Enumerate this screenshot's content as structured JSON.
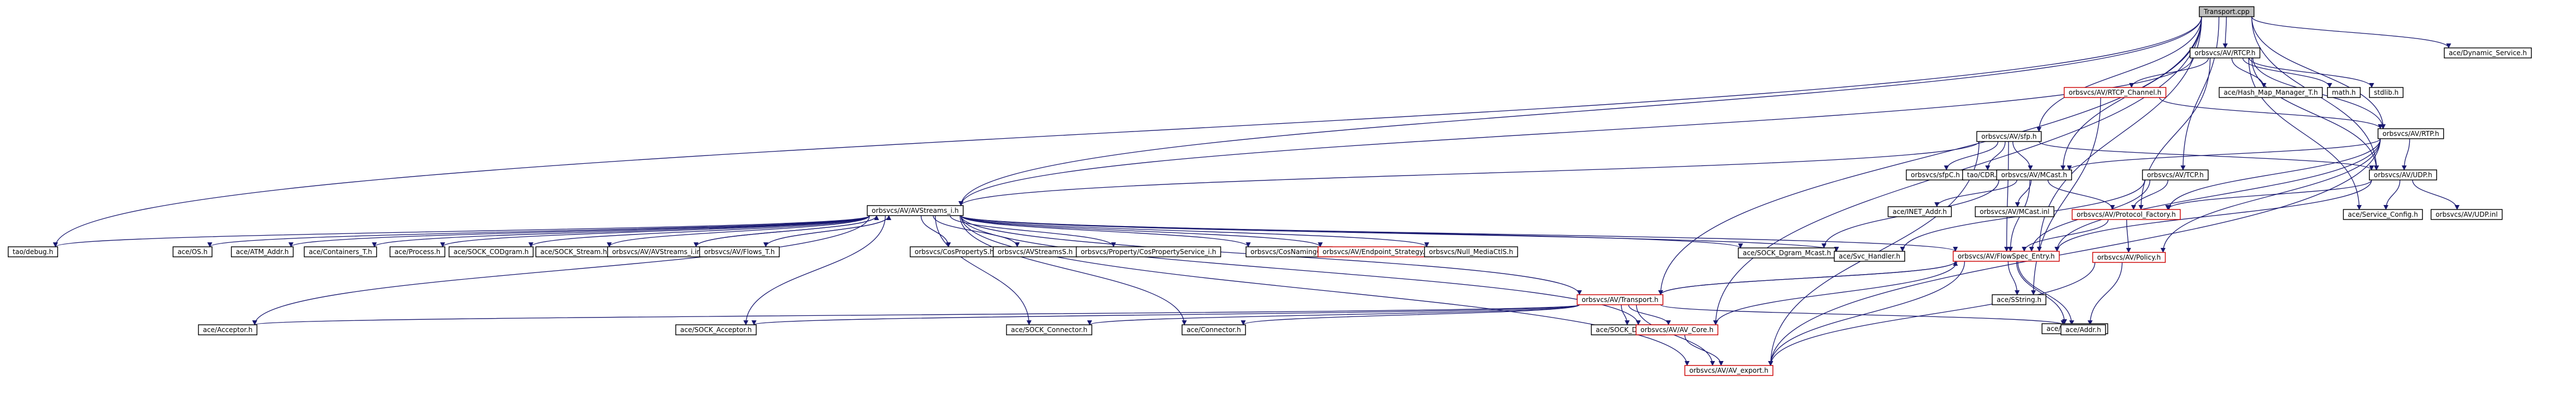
{
  "graph": {
    "edge_color": "#191970",
    "missing_border_color": "#cc0000",
    "root_fill_color": "#bfbfbf",
    "nodes": [
      {
        "id": "transport_cpp",
        "label": "Transport.cpp",
        "kind": "root"
      },
      {
        "id": "rtcp_h",
        "label": "orbsvcs/AV/RTCP.h",
        "kind": "normal"
      },
      {
        "id": "dynamic_service_h",
        "label": "ace/Dynamic_Service.h",
        "kind": "normal"
      },
      {
        "id": "rtcp_channel_h",
        "label": "orbsvcs/AV/RTCP_Channel.h",
        "kind": "missing"
      },
      {
        "id": "hash_map_manager_t_h",
        "label": "ace/Hash_Map_Manager_T.h",
        "kind": "normal"
      },
      {
        "id": "math_h",
        "label": "math.h",
        "kind": "normal"
      },
      {
        "id": "stdlib_h",
        "label": "stdlib.h",
        "kind": "normal"
      },
      {
        "id": "rtp_h",
        "label": "orbsvcs/AV/RTP.h",
        "kind": "normal"
      },
      {
        "id": "sfp_h",
        "label": "orbsvcs/AV/sfp.h",
        "kind": "normal"
      },
      {
        "id": "sfpc_h",
        "label": "orbsvcs/sfpC.h",
        "kind": "normal"
      },
      {
        "id": "tao_cdr_h",
        "label": "tao/CDR.h",
        "kind": "normal"
      },
      {
        "id": "mcast_h",
        "label": "orbsvcs/AV/MCast.h",
        "kind": "normal"
      },
      {
        "id": "tcp_h",
        "label": "orbsvcs/AV/TCP.h",
        "kind": "normal"
      },
      {
        "id": "udp_h",
        "label": "orbsvcs/AV/UDP.h",
        "kind": "normal"
      },
      {
        "id": "avstreams_i_h",
        "label": "orbsvcs/AV/AVStreams_i.h",
        "kind": "normal"
      },
      {
        "id": "ace_os_h",
        "label": "ace/OS.h",
        "kind": "normal"
      },
      {
        "id": "atm_addr_h",
        "label": "ace/ATM_Addr.h",
        "kind": "normal"
      },
      {
        "id": "containers_t_h",
        "label": "ace/Containers_T.h",
        "kind": "normal"
      },
      {
        "id": "process_h",
        "label": "ace/Process.h",
        "kind": "normal"
      },
      {
        "id": "sock_codgram_h",
        "label": "ace/SOCK_CODgram.h",
        "kind": "normal"
      },
      {
        "id": "sock_stream_h",
        "label": "ace/SOCK_Stream.h",
        "kind": "normal"
      },
      {
        "id": "avstreams_i_inl",
        "label": "orbsvcs/AV/AVStreams_i.inl",
        "kind": "normal"
      },
      {
        "id": "flows_t_h",
        "label": "orbsvcs/AV/Flows_T.h",
        "kind": "normal"
      },
      {
        "id": "cospropertys_h",
        "label": "orbsvcs/CosPropertyS.h",
        "kind": "normal"
      },
      {
        "id": "avstreamss_h",
        "label": "orbsvcs/AVStreamsS.h",
        "kind": "normal"
      },
      {
        "id": "cospropertyservice_i_h",
        "label": "orbsvcs/Property/CosPropertyService_i.h",
        "kind": "normal"
      },
      {
        "id": "cosnamingc_h",
        "label": "orbsvcs/CosNamingC.h",
        "kind": "normal"
      },
      {
        "id": "endpoint_strategy_h",
        "label": "orbsvcs/AV/Endpoint_Strategy.h",
        "kind": "missing"
      },
      {
        "id": "null_mediactls_h",
        "label": "orbsvcs/Null_MediaCtlS.h",
        "kind": "normal"
      },
      {
        "id": "sock_dgram_mcast_h",
        "label": "ace/SOCK_Dgram_Mcast.h",
        "kind": "normal"
      },
      {
        "id": "svc_handler_h",
        "label": "ace/Svc_Handler.h",
        "kind": "normal"
      },
      {
        "id": "flowspec_entry_h",
        "label": "orbsvcs/AV/FlowSpec_Entry.h",
        "kind": "missing"
      },
      {
        "id": "tao_debug_h",
        "label": "tao/debug.h",
        "kind": "normal"
      },
      {
        "id": "net_addr_h",
        "label": "ace/INET_Addr.h",
        "kind": "normal"
      },
      {
        "id": "mcast_inl",
        "label": "orbsvcs/AV/MCast.inl",
        "kind": "normal"
      },
      {
        "id": "protocol_factory_h",
        "label": "orbsvcs/AV/Protocol_Factory.h",
        "kind": "missing"
      },
      {
        "id": "service_config_h",
        "label": "ace/Service_Config.h",
        "kind": "normal"
      },
      {
        "id": "udp_inl",
        "label": "orbsvcs/AV/UDP.inl",
        "kind": "normal"
      },
      {
        "id": "policy_h",
        "label": "orbsvcs/AV/Policy.h",
        "kind": "missing"
      },
      {
        "id": "transport_h",
        "label": "orbsvcs/AV/Transport.h",
        "kind": "missing"
      },
      {
        "id": "sstring_h",
        "label": "ace/SString.h",
        "kind": "normal"
      },
      {
        "id": "containers_h",
        "label": "ace/Containers.h",
        "kind": "normal"
      },
      {
        "id": "acceptor_h",
        "label": "ace/Acceptor.h",
        "kind": "normal"
      },
      {
        "id": "sock_acceptor_h",
        "label": "ace/SOCK_Acceptor.h",
        "kind": "normal"
      },
      {
        "id": "sock_connector_h",
        "label": "ace/SOCK_Connector.h",
        "kind": "normal"
      },
      {
        "id": "connector_h",
        "label": "ace/Connector.h",
        "kind": "normal"
      },
      {
        "id": "sock_dgram_h",
        "label": "ace/SOCK_Dgram.h",
        "kind": "normal"
      },
      {
        "id": "av_core_h",
        "label": "orbsvcs/AV/AV_Core.h",
        "kind": "missing"
      },
      {
        "id": "ace_addr_h",
        "label": "ace/Addr.h",
        "kind": "normal"
      },
      {
        "id": "av_export_h",
        "label": "orbsvcs/AV/AV_export.h",
        "kind": "missing"
      }
    ],
    "edges": [
      [
        "transport_cpp",
        "rtcp_h"
      ],
      [
        "transport_cpp",
        "dynamic_service_h"
      ],
      [
        "transport_cpp",
        "sfp_h"
      ],
      [
        "transport_cpp",
        "rtp_h"
      ],
      [
        "transport_cpp",
        "mcast_h"
      ],
      [
        "transport_cpp",
        "tcp_h"
      ],
      [
        "transport_cpp",
        "udp_h"
      ],
      [
        "transport_cpp",
        "avstreams_i_h"
      ],
      [
        "transport_cpp",
        "tao_debug_h"
      ],
      [
        "transport_cpp",
        "transport_h"
      ],
      [
        "transport_cpp",
        "av_core_h"
      ],
      [
        "transport_cpp",
        "flowspec_entry_h"
      ],
      [
        "rtcp_h",
        "rtcp_channel_h"
      ],
      [
        "rtcp_h",
        "hash_map_manager_t_h"
      ],
      [
        "rtcp_h",
        "math_h"
      ],
      [
        "rtcp_h",
        "stdlib_h"
      ],
      [
        "rtcp_h",
        "rtp_h"
      ],
      [
        "rtcp_h",
        "udp_h"
      ],
      [
        "rtcp_h",
        "avstreams_i_h"
      ],
      [
        "rtcp_h",
        "service_config_h"
      ],
      [
        "rtcp_h",
        "protocol_factory_h"
      ],
      [
        "rtcp_channel_h",
        "rtp_h"
      ],
      [
        "rtcp_channel_h",
        "sstring_h"
      ],
      [
        "rtp_h",
        "mcast_h"
      ],
      [
        "rtp_h",
        "udp_h"
      ],
      [
        "rtp_h",
        "policy_h"
      ],
      [
        "rtp_h",
        "flowspec_entry_h"
      ],
      [
        "rtp_h",
        "av_export_h"
      ],
      [
        "rtp_h",
        "protocol_factory_h"
      ],
      [
        "sfp_h",
        "sfpc_h"
      ],
      [
        "sfp_h",
        "tao_cdr_h"
      ],
      [
        "sfp_h",
        "avstreams_i_h"
      ],
      [
        "sfp_h",
        "udp_h"
      ],
      [
        "sfp_h",
        "flowspec_entry_h"
      ],
      [
        "sfp_h",
        "av_export_h"
      ],
      [
        "sfp_h",
        "mcast_h"
      ],
      [
        "mcast_h",
        "net_addr_h"
      ],
      [
        "mcast_h",
        "mcast_inl"
      ],
      [
        "mcast_h",
        "protocol_factory_h"
      ],
      [
        "mcast_h",
        "flowspec_entry_h"
      ],
      [
        "mcast_h",
        "sock_dgram_mcast_h"
      ],
      [
        "tcp_h",
        "protocol_factory_h"
      ],
      [
        "tcp_h",
        "flowspec_entry_h"
      ],
      [
        "tcp_h",
        "svc_handler_h"
      ],
      [
        "udp_h",
        "protocol_factory_h"
      ],
      [
        "udp_h",
        "service_config_h"
      ],
      [
        "udp_h",
        "udp_inl"
      ],
      [
        "udp_h",
        "flowspec_entry_h"
      ],
      [
        "protocol_factory_h",
        "policy_h"
      ],
      [
        "protocol_factory_h",
        "flowspec_entry_h"
      ],
      [
        "avstreams_i_h",
        "ace_os_h"
      ],
      [
        "avstreams_i_h",
        "atm_addr_h"
      ],
      [
        "avstreams_i_h",
        "containers_t_h"
      ],
      [
        "avstreams_i_h",
        "process_h"
      ],
      [
        "avstreams_i_h",
        "sock_codgram_h"
      ],
      [
        "avstreams_i_h",
        "sock_stream_h"
      ],
      [
        "avstreams_i_h",
        "avstreams_i_inl"
      ],
      [
        "avstreams_i_h",
        "flows_t_h"
      ],
      [
        "avstreams_i_h",
        "cospropertys_h"
      ],
      [
        "avstreams_i_h",
        "avstreamss_h"
      ],
      [
        "avstreams_i_h",
        "cospropertyservice_i_h"
      ],
      [
        "avstreams_i_h",
        "cosnamingc_h"
      ],
      [
        "avstreams_i_h",
        "endpoint_strategy_h"
      ],
      [
        "avstreams_i_h",
        "null_mediactls_h"
      ],
      [
        "avstreams_i_h",
        "sock_dgram_mcast_h"
      ],
      [
        "avstreams_i_h",
        "svc_handler_h"
      ],
      [
        "avstreams_i_h",
        "flowspec_entry_h"
      ],
      [
        "avstreams_i_h",
        "tao_debug_h"
      ],
      [
        "avstreams_i_h",
        "transport_h"
      ],
      [
        "avstreams_i_h",
        "acceptor_h"
      ],
      [
        "avstreams_i_h",
        "sock_acceptor_h"
      ],
      [
        "avstreams_i_h",
        "sock_connector_h"
      ],
      [
        "avstreams_i_h",
        "connector_h"
      ],
      [
        "avstreams_i_h",
        "av_core_h"
      ],
      [
        "avstreams_i_h",
        "av_export_h"
      ],
      [
        "flows_t_h",
        "avstreams_i_h"
      ],
      [
        "avstreams_i_inl",
        "avstreams_i_h"
      ],
      [
        "flowspec_entry_h",
        "sstring_h"
      ],
      [
        "flowspec_entry_h",
        "containers_h"
      ],
      [
        "flowspec_entry_h",
        "ace_addr_h"
      ],
      [
        "flowspec_entry_h",
        "av_core_h"
      ],
      [
        "flowspec_entry_h",
        "av_export_h"
      ],
      [
        "flowspec_entry_h",
        "transport_h"
      ],
      [
        "transport_h",
        "acceptor_h"
      ],
      [
        "transport_h",
        "sock_acceptor_h"
      ],
      [
        "transport_h",
        "sock_connector_h"
      ],
      [
        "transport_h",
        "connector_h"
      ],
      [
        "transport_h",
        "sock_dgram_h"
      ],
      [
        "transport_h",
        "av_core_h"
      ],
      [
        "transport_h",
        "ace_addr_h"
      ],
      [
        "transport_h",
        "av_export_h"
      ],
      [
        "transport_h",
        "flowspec_entry_h"
      ],
      [
        "av_core_h",
        "av_export_h"
      ],
      [
        "policy_h",
        "ace_addr_h"
      ],
      [
        "policy_h",
        "av_export_h"
      ]
    ]
  }
}
